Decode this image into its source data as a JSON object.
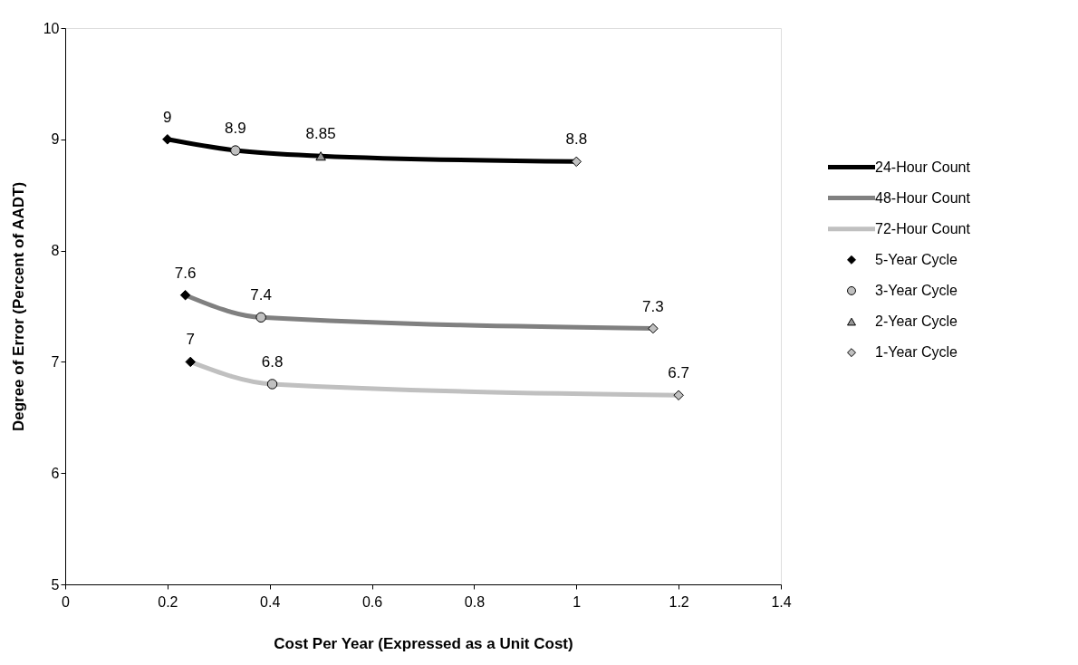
{
  "chart_data": {
    "type": "line",
    "xlabel": "Cost Per Year (Expressed as a Unit Cost)",
    "ylabel": "Degree of Error (Percent of AADT)",
    "xlim": [
      0,
      1.4
    ],
    "xticks": [
      0,
      0.2,
      0.4,
      0.6,
      0.8,
      1,
      1.2,
      1.4
    ],
    "ylim": [
      5,
      10
    ],
    "yticks": [
      5,
      6,
      7,
      8,
      9,
      10
    ],
    "grid": false,
    "legend": "right",
    "line_style": "solid",
    "series": [
      {
        "name": "24-Hour Count",
        "marker": "none",
        "color": "#000000",
        "x": [
          0.2,
          0.333,
          0.5,
          1.0
        ],
        "values": [
          9,
          8.9,
          8.85,
          8.8
        ]
      },
      {
        "name": "48-Hour Count",
        "marker": "none",
        "color": "#808080",
        "x": [
          0.235,
          0.383,
          1.15
        ],
        "values": [
          7.6,
          7.4,
          7.3
        ]
      },
      {
        "name": "72-Hour Count",
        "marker": "none",
        "color": "#c0c0c0",
        "x": [
          0.245,
          0.405,
          1.2
        ],
        "values": [
          7,
          6.8,
          6.7
        ]
      },
      {
        "name": "5-Year Cycle",
        "type": "scatter",
        "marker": "diamond",
        "color": "#000000",
        "x": [
          0.2,
          0.235,
          0.245
        ],
        "values": [
          9,
          7.6,
          7
        ],
        "value_labels": [
          "9",
          "7.6",
          "7"
        ]
      },
      {
        "name": "3-Year Cycle",
        "type": "scatter",
        "marker": "circle",
        "color": "#c0c0c0",
        "x": [
          0.333,
          0.383,
          0.405
        ],
        "values": [
          8.9,
          7.4,
          6.8
        ],
        "value_labels": [
          "8.9",
          "7.4",
          "6.8"
        ]
      },
      {
        "name": "2-Year Cycle",
        "type": "scatter",
        "marker": "triangle",
        "color": "#969696",
        "x": [
          0.5
        ],
        "values": [
          8.85
        ],
        "value_labels": [
          "8.85"
        ]
      },
      {
        "name": "1-Year Cycle",
        "type": "scatter",
        "marker": "diamond",
        "color": "#c0c0c0",
        "x": [
          1.0,
          1.15,
          1.2
        ],
        "values": [
          8.8,
          7.3,
          6.7
        ],
        "value_labels": [
          "8.8",
          "7.3",
          "6.7"
        ]
      }
    ]
  }
}
